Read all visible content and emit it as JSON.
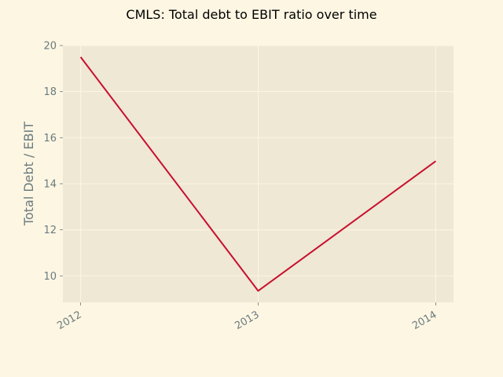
{
  "chart_data": {
    "type": "line",
    "title": "CMLS: Total debt to EBIT ratio over time",
    "xlabel": "",
    "ylabel": "Total Debt / EBIT",
    "x": [
      "2012",
      "2013",
      "2014"
    ],
    "series": [
      {
        "values": [
          19.5,
          9.35,
          14.98
        ],
        "color": "#c8102e"
      }
    ],
    "xlim": [
      2011.9,
      2014.1
    ],
    "ylim": [
      8.85,
      20.0
    ],
    "yticks": [
      10,
      12,
      14,
      16,
      18,
      20
    ],
    "grid": true,
    "legend": "none"
  },
  "colors": {
    "figure_background": "#fdf6e3",
    "plot_background": "#eee8d5",
    "grid": "#fdf6e3",
    "tick_text": "#6b7b7f",
    "line": "#c8102e"
  }
}
